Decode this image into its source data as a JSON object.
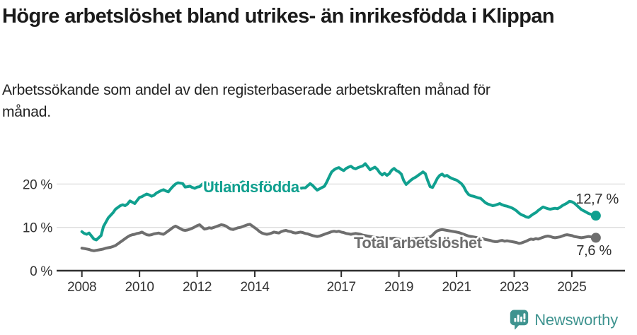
{
  "header": {
    "title": "Högre arbetslöshet bland utrikes- än inrikesfödda i Klippan",
    "subtitle": "Arbetssökande som andel av den registerbaserade arbetskraften månad för månad."
  },
  "chart_data": {
    "type": "line",
    "x_start": 2008.0,
    "x_step": 0.08333,
    "x_ticks": [
      2008,
      2010,
      2012,
      2014,
      2017,
      2019,
      2021,
      2023,
      2025
    ],
    "y_ticks": [
      {
        "value": 0,
        "label": "0 %"
      },
      {
        "value": 10,
        "label": "10 %"
      },
      {
        "value": 20,
        "label": "20 %"
      }
    ],
    "grid_y": [
      10,
      20
    ],
    "ylim": [
      0,
      28
    ],
    "legend_position": "inline-labels",
    "grid": "horizontal",
    "series": [
      {
        "name": "Utlandsfödda",
        "color": "#10a08f",
        "end_label": "12,7 %",
        "end_value": 12.7,
        "values": [
          9.0,
          8.6,
          8.4,
          8.7,
          8.0,
          7.3,
          7.1,
          7.6,
          8.1,
          10.2,
          11.2,
          12.2,
          12.8,
          13.4,
          14.2,
          14.6,
          15.0,
          15.2,
          15.0,
          15.4,
          16.1,
          15.8,
          15.5,
          16.2,
          16.9,
          17.1,
          17.4,
          17.7,
          17.5,
          17.2,
          17.4,
          17.9,
          18.2,
          18.5,
          18.7,
          18.4,
          18.2,
          18.9,
          19.5,
          20.0,
          20.3,
          20.2,
          20.1,
          19.3,
          19.4,
          19.5,
          19.2,
          19.0,
          19.3,
          19.4,
          19.9,
          20.4,
          20.2,
          19.9,
          19.8,
          19.7,
          19.4,
          19.6,
          19.8,
          19.5,
          19.7,
          19.9,
          20.1,
          19.8,
          19.6,
          19.9,
          20.2,
          20.5,
          20.3,
          20.0,
          19.8,
          19.6,
          19.9,
          20.1,
          19.8,
          19.5,
          19.3,
          19.6,
          19.4,
          19.2,
          19.0,
          19.1,
          19.3,
          19.7,
          20.2,
          19.6,
          18.9,
          19.7,
          19.4,
          19.5,
          19.2,
          19.0,
          19.1,
          19.1,
          19.6,
          20.1,
          19.7,
          19.1,
          18.6,
          18.9,
          19.2,
          19.5,
          20.5,
          21.7,
          22.8,
          23.3,
          23.6,
          23.8,
          23.4,
          23.1,
          23.6,
          23.9,
          24.1,
          23.7,
          23.5,
          23.8,
          24.0,
          24.2,
          24.7,
          24.0,
          23.3,
          23.6,
          23.9,
          23.4,
          22.6,
          22.1,
          22.5,
          22.0,
          22.4,
          23.2,
          23.6,
          23.1,
          22.8,
          22.3,
          20.8,
          19.9,
          20.4,
          20.9,
          21.3,
          21.6,
          22.0,
          22.4,
          22.8,
          22.4,
          20.8,
          19.4,
          19.2,
          20.2,
          21.3,
          22.0,
          22.3,
          21.8,
          22.0,
          21.6,
          21.3,
          21.1,
          20.9,
          20.5,
          20.1,
          19.4,
          18.3,
          17.6,
          17.3,
          17.2,
          17.0,
          16.8,
          16.7,
          16.2,
          15.7,
          15.4,
          15.2,
          15.0,
          15.1,
          15.3,
          15.5,
          15.2,
          15.0,
          14.9,
          14.7,
          14.5,
          14.2,
          13.8,
          13.3,
          12.9,
          12.7,
          12.4,
          12.3,
          12.7,
          13.1,
          13.4,
          13.9,
          14.3,
          14.7,
          14.5,
          14.3,
          14.2,
          14.3,
          14.4,
          14.3,
          14.6,
          15.0,
          15.3,
          15.6,
          16.0,
          15.9,
          15.6,
          15.1,
          14.6,
          14.1,
          13.8,
          13.5,
          13.2,
          13.0,
          12.8,
          12.7
        ]
      },
      {
        "name": "Total arbetslöshet",
        "color": "#6e6e6e",
        "end_label": "7,6 %",
        "end_value": 7.6,
        "values": [
          5.2,
          5.1,
          5.0,
          4.9,
          4.7,
          4.6,
          4.7,
          4.8,
          4.9,
          5.0,
          5.2,
          5.3,
          5.4,
          5.6,
          5.8,
          6.2,
          6.6,
          7.0,
          7.4,
          7.8,
          8.1,
          8.3,
          8.4,
          8.6,
          8.7,
          8.9,
          8.6,
          8.3,
          8.2,
          8.3,
          8.5,
          8.6,
          8.7,
          8.5,
          8.4,
          8.8,
          9.2,
          9.6,
          10.0,
          10.3,
          10.0,
          9.7,
          9.4,
          9.3,
          9.4,
          9.6,
          9.8,
          10.1,
          10.4,
          10.6,
          10.1,
          9.6,
          9.7,
          9.9,
          9.8,
          10.0,
          10.2,
          10.4,
          10.6,
          10.5,
          10.3,
          9.9,
          9.6,
          9.5,
          9.7,
          9.9,
          10.0,
          10.2,
          10.4,
          10.6,
          10.7,
          10.3,
          9.9,
          9.5,
          9.0,
          8.7,
          8.5,
          8.4,
          8.5,
          8.7,
          8.9,
          8.8,
          8.7,
          9.0,
          9.2,
          9.3,
          9.1,
          9.0,
          8.8,
          8.7,
          8.8,
          8.9,
          8.8,
          8.6,
          8.5,
          8.3,
          8.1,
          8.0,
          7.9,
          8.0,
          8.2,
          8.4,
          8.6,
          8.8,
          9.0,
          9.1,
          9.0,
          9.1,
          8.9,
          8.8,
          8.6,
          8.5,
          8.4,
          8.5,
          8.6,
          8.5,
          8.4,
          8.2,
          8.1,
          8.0,
          7.9,
          7.8,
          7.7,
          7.6,
          7.5,
          7.6,
          7.7,
          7.6,
          7.5,
          7.4,
          7.5,
          7.4,
          7.3,
          7.2,
          7.1,
          7.2,
          7.3,
          7.4,
          7.3,
          7.4,
          7.5,
          7.4,
          7.5,
          7.6,
          7.7,
          7.8,
          8.2,
          8.8,
          9.2,
          9.4,
          9.5,
          9.4,
          9.3,
          9.2,
          9.1,
          9.0,
          8.9,
          8.8,
          8.6,
          8.4,
          8.2,
          8.0,
          7.9,
          7.8,
          7.7,
          7.6,
          7.5,
          7.4,
          7.2,
          7.1,
          7.0,
          6.8,
          6.7,
          6.7,
          6.9,
          7.0,
          6.8,
          6.9,
          6.8,
          6.7,
          6.6,
          6.5,
          6.3,
          6.4,
          6.6,
          6.8,
          7.1,
          7.3,
          7.2,
          7.4,
          7.3,
          7.5,
          7.7,
          7.9,
          8.0,
          7.9,
          7.7,
          7.6,
          7.7,
          7.8,
          8.0,
          8.2,
          8.3,
          8.2,
          8.1,
          7.9,
          7.8,
          7.7,
          7.6,
          7.7,
          7.8,
          7.9,
          7.8,
          7.7,
          7.6
        ]
      }
    ]
  },
  "footer": {
    "brand": "Newsworthy",
    "brand_color": "#3e938f"
  }
}
